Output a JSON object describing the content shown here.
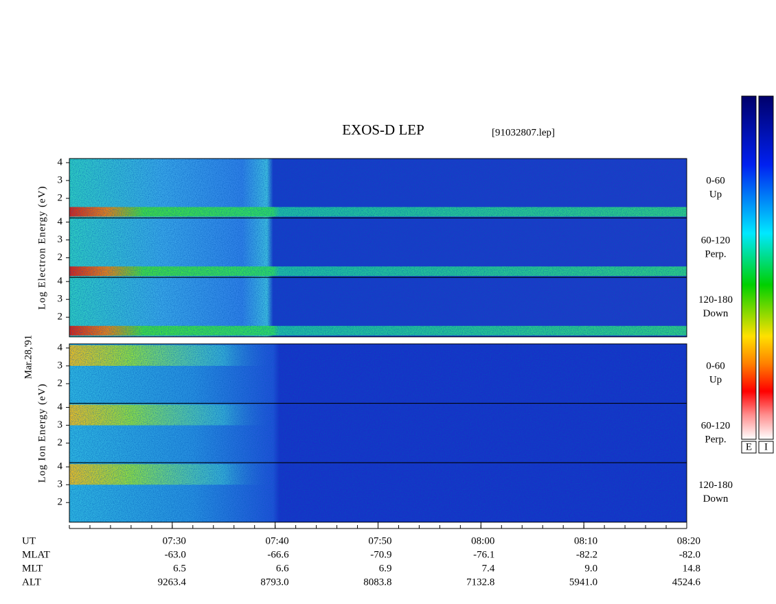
{
  "title": "EXOS-D LEP",
  "file": "[91032807.lep]",
  "date": "Mar.28,'91",
  "chart_data": {
    "type": "spectrogram",
    "groups": [
      {
        "label": "Log Electron Energy (eV)",
        "panels": [
          {
            "angle": "0-60",
            "direction": "Up"
          },
          {
            "angle": "60-120",
            "direction": "Perp."
          },
          {
            "angle": "120-180",
            "direction": "Down"
          }
        ]
      },
      {
        "label": "Log Ion Energy (eV)",
        "panels": [
          {
            "angle": "0-60",
            "direction": "Up"
          },
          {
            "angle": "60-120",
            "direction": "Perp."
          },
          {
            "angle": "120-180",
            "direction": "Down"
          }
        ]
      }
    ],
    "ylim": [
      0.9,
      4.23
    ],
    "yticks": [
      2,
      3,
      4
    ],
    "xlim": [
      440,
      500
    ],
    "xticks": [
      {
        "value": 450,
        "label": "07:30"
      },
      {
        "value": 460,
        "label": "07:40"
      },
      {
        "value": 470,
        "label": "07:50"
      },
      {
        "value": 480,
        "label": "08:00"
      },
      {
        "value": 490,
        "label": "08:10"
      },
      {
        "value": 500,
        "label": "08:20"
      }
    ],
    "x_label": "UT",
    "ephemeris": [
      {
        "label": "MLAT",
        "values": [
          "-63.0",
          "-66.6",
          "-70.9",
          "-76.1",
          "-82.2",
          "-82.0"
        ]
      },
      {
        "label": "MLT",
        "values": [
          "6.5",
          "6.6",
          "6.9",
          "7.4",
          "9.0",
          "14.8"
        ]
      },
      {
        "label": "ALT",
        "values": [
          "9263.4",
          "8793.0",
          "8083.8",
          "7132.8",
          "5941.0",
          "4524.6"
        ]
      }
    ],
    "colorbars": [
      "E",
      "I"
    ]
  }
}
